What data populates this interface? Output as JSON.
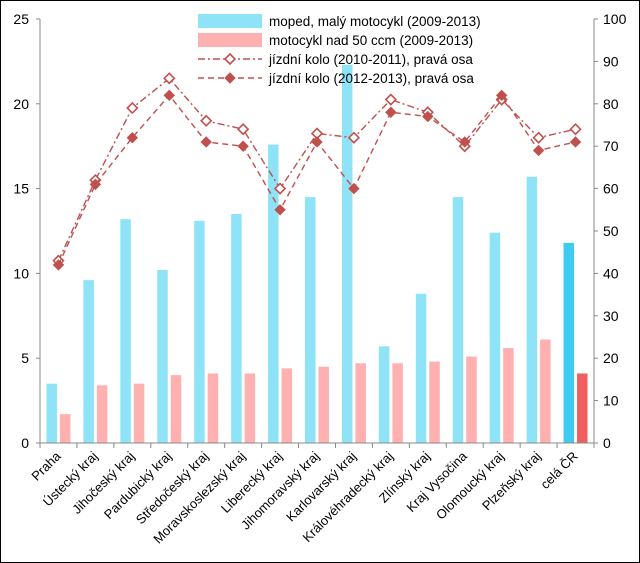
{
  "chart_data": {
    "type": "bar",
    "categories": [
      "Praha",
      "Ústecký kraj",
      "Jihočeský kraj",
      "Pardubický kraj",
      "Středočeský kraj",
      "Moravskoslezský kraj",
      "Liberecký kraj",
      "Jihomoravský kraj",
      "Karlovarský kraj",
      "Královéhradecký kraj",
      "Zlínský kraj",
      "Kraj Vysočina",
      "Olomoucký kraj",
      "Plzeňský kraj",
      "celá ČR"
    ],
    "y_left": {
      "min": 0,
      "max": 25,
      "step": 5,
      "ticks": [
        "0",
        "5",
        "10",
        "15",
        "20",
        "25"
      ]
    },
    "y_right": {
      "min": 0,
      "max": 100,
      "step": 10,
      "ticks": [
        "0",
        "10",
        "20",
        "30",
        "40",
        "50",
        "60",
        "70",
        "80",
        "90",
        "100"
      ]
    },
    "series": [
      {
        "name": "moped, malý motocykl (2009-2013)",
        "kind": "bar",
        "axis": "left",
        "color": "#8fe3f7",
        "highlight_color": "#3fcaef",
        "values": [
          3.5,
          9.6,
          13.2,
          10.2,
          13.1,
          13.5,
          17.6,
          14.5,
          22.3,
          5.7,
          8.8,
          14.5,
          12.4,
          15.7,
          11.8
        ]
      },
      {
        "name": "motocykl nad 50 ccm (2009-2013)",
        "kind": "bar",
        "axis": "left",
        "color": "#ffb0b0",
        "highlight_color": "#ef5f5f",
        "values": [
          1.7,
          3.4,
          3.5,
          4.0,
          4.1,
          4.1,
          4.4,
          4.5,
          4.7,
          4.7,
          4.8,
          5.1,
          5.6,
          6.1,
          4.1
        ]
      },
      {
        "name": "jízdní kolo (2010-2011), pravá osa",
        "kind": "line",
        "axis": "right",
        "dash": "dashdot",
        "marker": "open-diamond",
        "color": "#c0504d",
        "values": [
          43,
          62,
          79,
          86,
          76,
          74,
          60,
          73,
          72,
          81,
          78,
          70,
          81,
          72,
          74
        ]
      },
      {
        "name": "jízdní kolo (2012-2013), pravá osa",
        "kind": "line",
        "axis": "right",
        "dash": "dash",
        "marker": "filled-diamond",
        "color": "#c0504d",
        "values": [
          42,
          61,
          72,
          82,
          71,
          70,
          55,
          71,
          60,
          78,
          77,
          71,
          82,
          69,
          71
        ]
      }
    ]
  }
}
